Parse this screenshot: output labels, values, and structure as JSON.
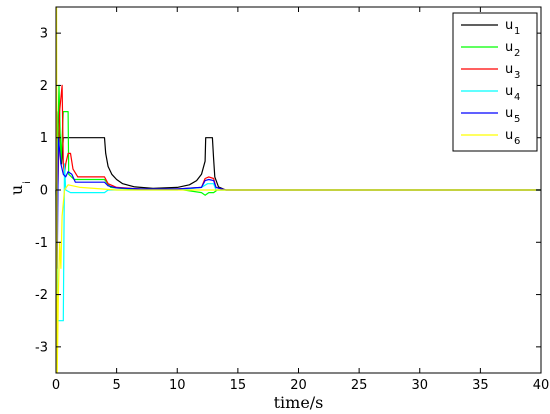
{
  "chart_data": {
    "type": "line",
    "xlabel": "time/s",
    "ylabel": {
      "main": "u",
      "sub": "i"
    },
    "xlim": [
      0,
      40
    ],
    "ylim": [
      -3.5,
      3.5
    ],
    "xticks": [
      0,
      5,
      10,
      15,
      20,
      25,
      30,
      35,
      40
    ],
    "yticks": [
      -3,
      -2,
      -1,
      0,
      1,
      2,
      3
    ],
    "grid": false,
    "legend_placement": "top-right",
    "series": [
      {
        "name_main": "u",
        "name_sub": "1",
        "color": "#000000",
        "x": [
          0,
          0.02,
          0.05,
          0.1,
          0.2,
          0.35,
          0.45,
          0.6,
          0.8,
          1.0,
          1.2,
          1.6,
          2.0,
          3.0,
          4.0,
          4.1,
          4.3,
          4.6,
          5.0,
          5.5,
          6.5,
          8.0,
          10.0,
          11.0,
          11.6,
          12.0,
          12.3,
          12.35,
          12.5,
          12.9,
          13.0,
          13.1,
          13.4,
          14.0,
          40
        ],
        "y": [
          0,
          -1.8,
          -0.5,
          1.0,
          1.5,
          1.0,
          0.5,
          1.0,
          1.0,
          1.0,
          1.0,
          1.0,
          1.0,
          1.0,
          1.0,
          0.7,
          0.45,
          0.3,
          0.2,
          0.12,
          0.06,
          0.03,
          0.05,
          0.1,
          0.18,
          0.3,
          0.55,
          1.0,
          1.0,
          1.0,
          0.6,
          0.25,
          0.06,
          0.0,
          0.0
        ]
      },
      {
        "name_main": "u",
        "name_sub": "2",
        "color": "#00ff00",
        "x": [
          0,
          0.05,
          0.1,
          0.25,
          0.4,
          0.6,
          0.9,
          1.0,
          1.05,
          1.5,
          2.5,
          4.0,
          4.5,
          6.0,
          10.0,
          12.0,
          12.3,
          12.6,
          13.0,
          13.3,
          14.0,
          40
        ],
        "y": [
          0,
          -2.5,
          0.5,
          2.0,
          0.5,
          1.5,
          1.5,
          1.5,
          0.3,
          0.2,
          0.2,
          0.2,
          0.05,
          0.02,
          0.02,
          -0.05,
          -0.1,
          -0.05,
          -0.05,
          0.0,
          0.0,
          0.0
        ]
      },
      {
        "name_main": "u",
        "name_sub": "3",
        "color": "#ff0000",
        "x": [
          0,
          0.1,
          0.3,
          0.5,
          0.6,
          0.7,
          0.8,
          1.0,
          1.2,
          1.4,
          1.8,
          2.5,
          4.0,
          4.3,
          5.0,
          7.0,
          10.0,
          12.0,
          12.3,
          12.6,
          13.0,
          13.2,
          14.0,
          40
        ],
        "y": [
          0,
          -0.5,
          1.5,
          2.0,
          0.5,
          0.3,
          0.5,
          0.7,
          0.7,
          0.4,
          0.25,
          0.25,
          0.25,
          0.12,
          0.05,
          0.02,
          0.02,
          0.05,
          0.22,
          0.25,
          0.22,
          0.05,
          0.0,
          0.0
        ]
      },
      {
        "name_main": "u",
        "name_sub": "4",
        "color": "#00ffff",
        "x": [
          0,
          0.05,
          0.15,
          0.3,
          0.6,
          0.7,
          0.8,
          1.2,
          1.5,
          3.5,
          4.0,
          4.3,
          6.0,
          10.0,
          12.0,
          12.5,
          13.0,
          13.2,
          14.0,
          40
        ],
        "y": [
          0,
          1.0,
          -2.5,
          -2.5,
          -2.5,
          0.5,
          0.0,
          -0.05,
          -0.05,
          -0.05,
          -0.05,
          0.0,
          0.0,
          0.0,
          0.05,
          0.12,
          0.12,
          0.0,
          0.0,
          0.0
        ]
      },
      {
        "name_main": "u",
        "name_sub": "5",
        "color": "#0000ff",
        "x": [
          0,
          0.1,
          0.2,
          0.4,
          0.6,
          0.8,
          1.0,
          1.3,
          1.6,
          2.5,
          4.0,
          4.3,
          5.0,
          7.0,
          10.0,
          12.0,
          12.3,
          12.6,
          13.0,
          13.2,
          14.0,
          40
        ],
        "y": [
          0,
          -1.5,
          1.0,
          0.5,
          0.3,
          0.25,
          0.35,
          0.3,
          0.15,
          0.15,
          0.15,
          0.08,
          0.04,
          0.02,
          0.02,
          0.05,
          0.18,
          0.2,
          0.18,
          0.05,
          0.0,
          0.0
        ]
      },
      {
        "name_main": "u",
        "name_sub": "6",
        "color": "#ffff00",
        "x": [
          0,
          0.05,
          0.1,
          0.2,
          0.3,
          0.4,
          0.5,
          0.7,
          1.0,
          2.0,
          5.0,
          14.0,
          40
        ],
        "y": [
          0,
          3.5,
          -3.5,
          -2.0,
          -1.0,
          -1.5,
          -0.5,
          0.0,
          0.1,
          0.05,
          0.0,
          0.0,
          0.0
        ]
      }
    ]
  }
}
